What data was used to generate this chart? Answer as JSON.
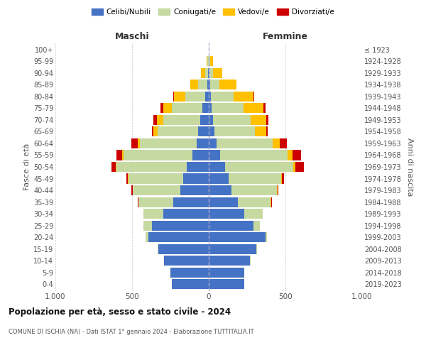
{
  "age_groups": [
    "0-4",
    "5-9",
    "10-14",
    "15-19",
    "20-24",
    "25-29",
    "30-34",
    "35-39",
    "40-44",
    "45-49",
    "50-54",
    "55-59",
    "60-64",
    "65-69",
    "70-74",
    "75-79",
    "80-84",
    "85-89",
    "90-94",
    "95-99",
    "100+"
  ],
  "birth_years": [
    "2019-2023",
    "2014-2018",
    "2009-2013",
    "2004-2008",
    "1999-2003",
    "1994-1998",
    "1989-1993",
    "1984-1988",
    "1979-1983",
    "1974-1978",
    "1969-1973",
    "1964-1968",
    "1959-1963",
    "1954-1958",
    "1949-1953",
    "1944-1948",
    "1939-1943",
    "1934-1938",
    "1929-1933",
    "1924-1928",
    "≤ 1923"
  ],
  "colors": {
    "celibi": "#4472c4",
    "coniugati": "#c5d9a0",
    "vedovi": "#ffc000",
    "divorziati": "#cc0000"
  },
  "maschi": {
    "celibi": [
      240,
      250,
      290,
      330,
      395,
      370,
      295,
      230,
      185,
      165,
      145,
      105,
      80,
      70,
      55,
      40,
      25,
      10,
      5,
      2,
      0
    ],
    "coniugati": [
      0,
      1,
      2,
      5,
      15,
      55,
      130,
      230,
      310,
      360,
      455,
      450,
      370,
      265,
      240,
      200,
      130,
      60,
      20,
      5,
      0
    ],
    "vedovi": [
      0,
      0,
      0,
      0,
      0,
      0,
      0,
      0,
      1,
      2,
      5,
      10,
      15,
      25,
      45,
      55,
      70,
      50,
      25,
      5,
      0
    ],
    "divorziati": [
      0,
      0,
      0,
      0,
      0,
      0,
      2,
      5,
      8,
      10,
      30,
      35,
      40,
      10,
      20,
      20,
      5,
      2,
      0,
      0,
      0
    ]
  },
  "femmine": {
    "celibi": [
      230,
      230,
      270,
      310,
      370,
      290,
      230,
      190,
      150,
      130,
      105,
      75,
      50,
      35,
      30,
      20,
      15,
      10,
      5,
      2,
      0
    ],
    "coniugati": [
      0,
      1,
      2,
      3,
      10,
      45,
      120,
      215,
      295,
      340,
      445,
      440,
      365,
      265,
      245,
      205,
      145,
      60,
      25,
      5,
      0
    ],
    "vedovi": [
      0,
      0,
      0,
      0,
      0,
      0,
      0,
      1,
      2,
      5,
      15,
      30,
      50,
      75,
      100,
      130,
      130,
      110,
      60,
      20,
      2
    ],
    "divorziati": [
      0,
      0,
      0,
      0,
      0,
      0,
      2,
      5,
      8,
      15,
      55,
      55,
      45,
      10,
      15,
      15,
      5,
      2,
      0,
      0,
      0
    ]
  },
  "title": "Popolazione per età, sesso e stato civile - 2024",
  "subtitle": "COMUNE DI ISCHIA (NA) - Dati ISTAT 1° gennaio 2024 - Elaborazione TUTTITALIA.IT",
  "xlabel_left": "Maschi",
  "xlabel_right": "Femmine",
  "ylabel_left": "Fasce di età",
  "ylabel_right": "Anni di nascita",
  "xlim": 1000,
  "legend_labels": [
    "Celibi/Nubili",
    "Coniugati/e",
    "Vedovi/e",
    "Divorziati/e"
  ],
  "bg_color": "#ffffff",
  "grid_color": "#cccccc"
}
